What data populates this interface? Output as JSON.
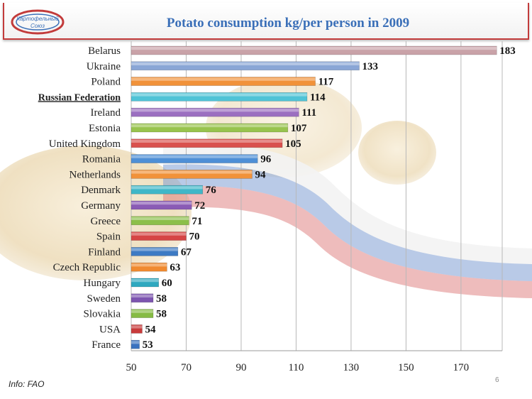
{
  "slide": {
    "source_note": "Info: FAO",
    "page_number": "6"
  },
  "logo": {
    "lines": [
      "Картофельный",
      "Союз"
    ],
    "accent_color": "#c23b3b",
    "secondary_color": "#3a6fb8"
  },
  "colors": {
    "bar_palette": [
      "#c9a2a8",
      "#8aa6d6",
      "#f1923a",
      "#4fc3d6",
      "#9b6fc0",
      "#98c34e",
      "#d9514e",
      "#4e8fd6",
      "#f1923a",
      "#3fb7c8",
      "#8a5bb5",
      "#8cbf4a",
      "#d64545",
      "#3d7ac4",
      "#f08a30",
      "#2fa8bf",
      "#7d55b0",
      "#86bb44",
      "#c83a3a",
      "#3a72bf"
    ],
    "title": "#3a6fb8",
    "frame": "#c23b3b"
  },
  "chart_data": {
    "type": "bar",
    "orientation": "horizontal",
    "title": "Potato consumption kg/per person in 2009",
    "xlabel": "",
    "ylabel": "",
    "xlim": [
      50,
      185
    ],
    "x_ticks": [
      50,
      70,
      90,
      110,
      130,
      150,
      170
    ],
    "grid": true,
    "highlighted_category": "Russian Federation",
    "categories": [
      "Belarus",
      "Ukraine",
      "Poland",
      "Russian Federation",
      "Ireland",
      "Estonia",
      "United Kingdom",
      "Romania",
      "Netherlands",
      "Denmark",
      "Germany",
      "Greece",
      "Spain",
      "Finland",
      "Czech Republic",
      "Hungary",
      "Sweden",
      "Slovakia",
      "USA",
      "France"
    ],
    "values": [
      183,
      133,
      117,
      114,
      111,
      107,
      105,
      96,
      94,
      76,
      72,
      71,
      70,
      67,
      63,
      60,
      58,
      58,
      54,
      53
    ]
  }
}
